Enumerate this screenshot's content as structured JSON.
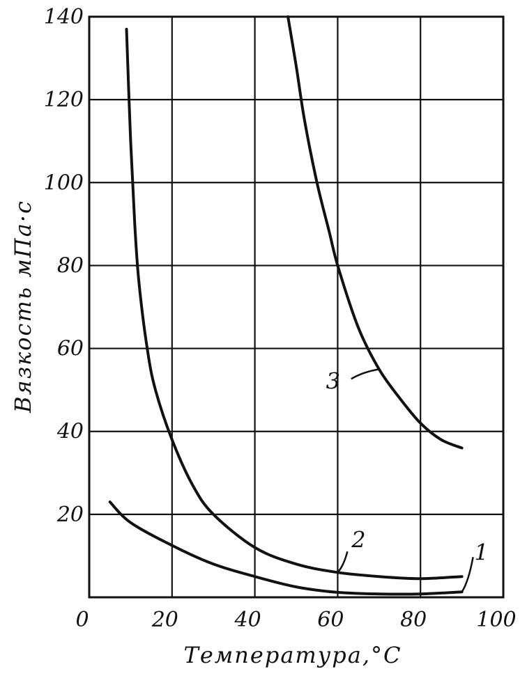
{
  "chart_data": {
    "type": "line",
    "xlabel": "Температура,°С",
    "ylabel": "Вязкость мПа·с",
    "xlim": [
      0,
      100
    ],
    "ylim": [
      0,
      140
    ],
    "x_ticks": [
      0,
      20,
      40,
      60,
      80,
      100
    ],
    "y_ticks": [
      20,
      40,
      60,
      80,
      100,
      120,
      140
    ],
    "x_tick_labels": [
      "0",
      "20",
      "40",
      "60",
      "80",
      "100"
    ],
    "y_tick_labels": [
      "20",
      "40",
      "60",
      "80",
      "100",
      "120",
      "140"
    ],
    "grid": true,
    "series": [
      {
        "name": "1",
        "x": [
          5,
          10,
          20,
          30,
          40,
          50,
          60,
          70,
          80,
          90
        ],
        "y": [
          23,
          18,
          12.5,
          8,
          5,
          2.5,
          1.2,
          0.8,
          0.8,
          1.3
        ]
      },
      {
        "name": "2",
        "x": [
          9,
          10,
          11,
          12,
          14,
          16,
          20,
          25,
          30,
          40,
          50,
          60,
          70,
          80,
          90
        ],
        "y": [
          137,
          110,
          90,
          76,
          60,
          50,
          38,
          27,
          20,
          12,
          8,
          6,
          5,
          4.5,
          5
        ]
      },
      {
        "name": "3",
        "x": [
          48,
          50,
          52,
          55,
          58,
          60,
          65,
          70,
          75,
          80,
          85,
          90
        ],
        "y": [
          140,
          128,
          115,
          100,
          88,
          80,
          65,
          55,
          48,
          42,
          38,
          36
        ]
      }
    ]
  }
}
